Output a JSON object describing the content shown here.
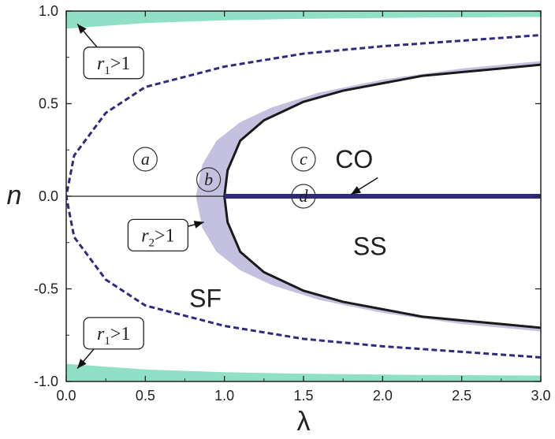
{
  "chart_data": {
    "type": "area",
    "title": "",
    "xlabel": "λ",
    "ylabel": "n",
    "xlim": [
      0.0,
      3.0
    ],
    "ylim": [
      -1.0,
      1.0
    ],
    "xticks": [
      "0.0",
      "0.5",
      "1.0",
      "1.5",
      "2.0",
      "2.5",
      "3.0"
    ],
    "yticks": [
      "1.0",
      "0.5",
      "0.0",
      "-0.5",
      "-1.0"
    ],
    "grid": false,
    "legend": "none",
    "colors": {
      "r1_region": "#8fe0c6",
      "r2_band": "#c4c0e0",
      "dashed_boundary": "#2e2a80",
      "co_line": "#2e2a80",
      "solid_boundary": "#1a1a1a"
    },
    "region_labels": [
      {
        "text": "SF",
        "x": 0.88,
        "y": -0.55
      },
      {
        "text": "SS",
        "x": 1.92,
        "y": -0.27
      },
      {
        "text": "CO",
        "x": 1.82,
        "y": 0.2
      }
    ],
    "circled_labels": [
      {
        "text": "a",
        "x": 0.5,
        "y": 0.2
      },
      {
        "text": "b",
        "x": 0.9,
        "y": 0.09
      },
      {
        "text": "c",
        "x": 1.5,
        "y": 0.2
      },
      {
        "text": "d",
        "x": 1.5,
        "y": 0.0
      }
    ],
    "callouts": [
      {
        "main": "r",
        "sub": "1",
        "rest": ">1",
        "x": 0.3,
        "y": 0.72
      },
      {
        "main": "r",
        "sub": "2",
        "rest": ">1",
        "x": 0.58,
        "y": -0.21
      },
      {
        "main": "r",
        "sub": "1",
        "rest": ">1",
        "x": 0.3,
        "y": -0.74
      }
    ],
    "series": [
      {
        "type": "dashed",
        "x": [
          0.0,
          0.05,
          0.25,
          0.5,
          1.0,
          1.5,
          2.0,
          2.5,
          3.0
        ],
        "y": [
          0.0,
          0.22,
          0.45,
          0.59,
          0.7,
          0.77,
          0.81,
          0.84,
          0.87
        ]
      },
      {
        "type": "solid",
        "x": [
          1.0,
          1.02,
          1.1,
          1.25,
          1.5,
          1.75,
          2.0,
          2.25,
          2.5,
          2.75,
          3.0
        ],
        "y": [
          0.0,
          0.14,
          0.3,
          0.41,
          0.51,
          0.57,
          0.61,
          0.65,
          0.67,
          0.69,
          0.71
        ]
      },
      {
        "type": "co_line",
        "x": [
          1.0,
          3.0
        ],
        "y": [
          0.0,
          0.0
        ]
      },
      {
        "type": "r2_band_outer",
        "x": [
          0.82,
          0.86,
          0.95,
          1.1,
          1.3,
          1.6,
          2.0,
          2.5,
          3.0
        ],
        "y": [
          0.0,
          0.17,
          0.3,
          0.4,
          0.48,
          0.56,
          0.63,
          0.69,
          0.73
        ]
      },
      {
        "type": "r1_top_lower",
        "x": [
          0.0,
          0.5,
          1.0,
          1.5,
          2.0,
          2.5,
          3.0
        ],
        "y": [
          0.905,
          0.935,
          0.95,
          0.958,
          0.963,
          0.966,
          0.968
        ]
      }
    ]
  }
}
